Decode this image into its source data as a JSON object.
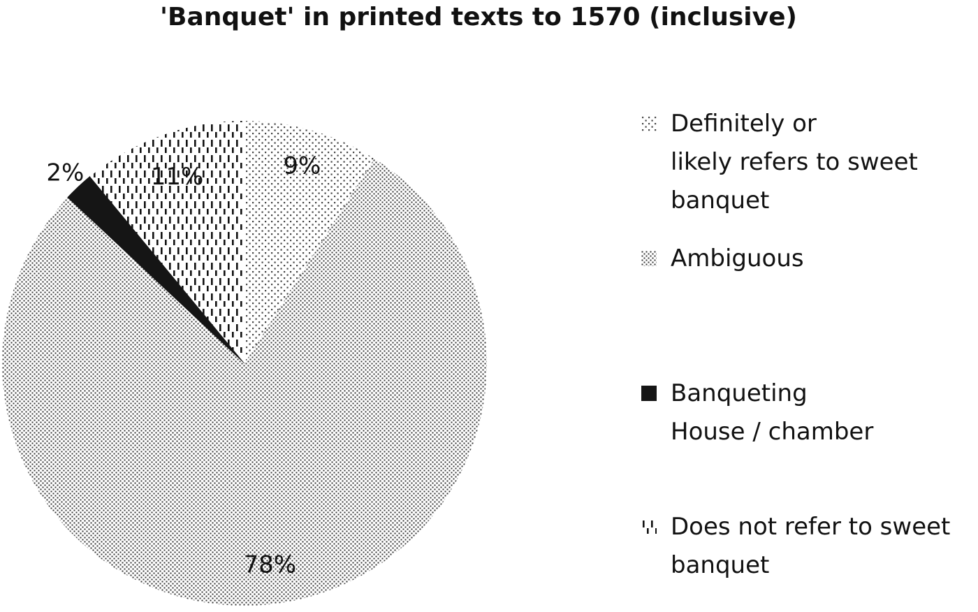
{
  "chart_data": {
    "type": "pie",
    "title": "'Banquet' in printed texts to 1570 (inclusive)",
    "slices": [
      {
        "label": "Definitely or likely refers to sweet banquet",
        "value": 9,
        "value_label": "9%",
        "pattern": "sparse-dots",
        "color": "#bbbbbb"
      },
      {
        "label": "Ambiguous",
        "value": 78,
        "value_label": "78%",
        "pattern": "fine-dots",
        "color": "#555555"
      },
      {
        "label": "Banqueting House / chamber",
        "value": 2,
        "value_label": "2%",
        "pattern": "solid",
        "color": "#151515"
      },
      {
        "label": "Does not refer to sweet banquet",
        "value": 11,
        "value_label": "11%",
        "pattern": "dashes",
        "color": "#222222"
      }
    ],
    "start_angle_deg": 0,
    "direction": "clockwise",
    "legend_position": "right"
  },
  "legend": {
    "items": [
      {
        "text": "Definitely or\nlikely refers to sweet\nbanquet"
      },
      {
        "text": "Ambiguous"
      },
      {
        "text": "Banqueting\nHouse / chamber"
      },
      {
        "text": "Does not refer to sweet\nbanquet"
      }
    ]
  }
}
